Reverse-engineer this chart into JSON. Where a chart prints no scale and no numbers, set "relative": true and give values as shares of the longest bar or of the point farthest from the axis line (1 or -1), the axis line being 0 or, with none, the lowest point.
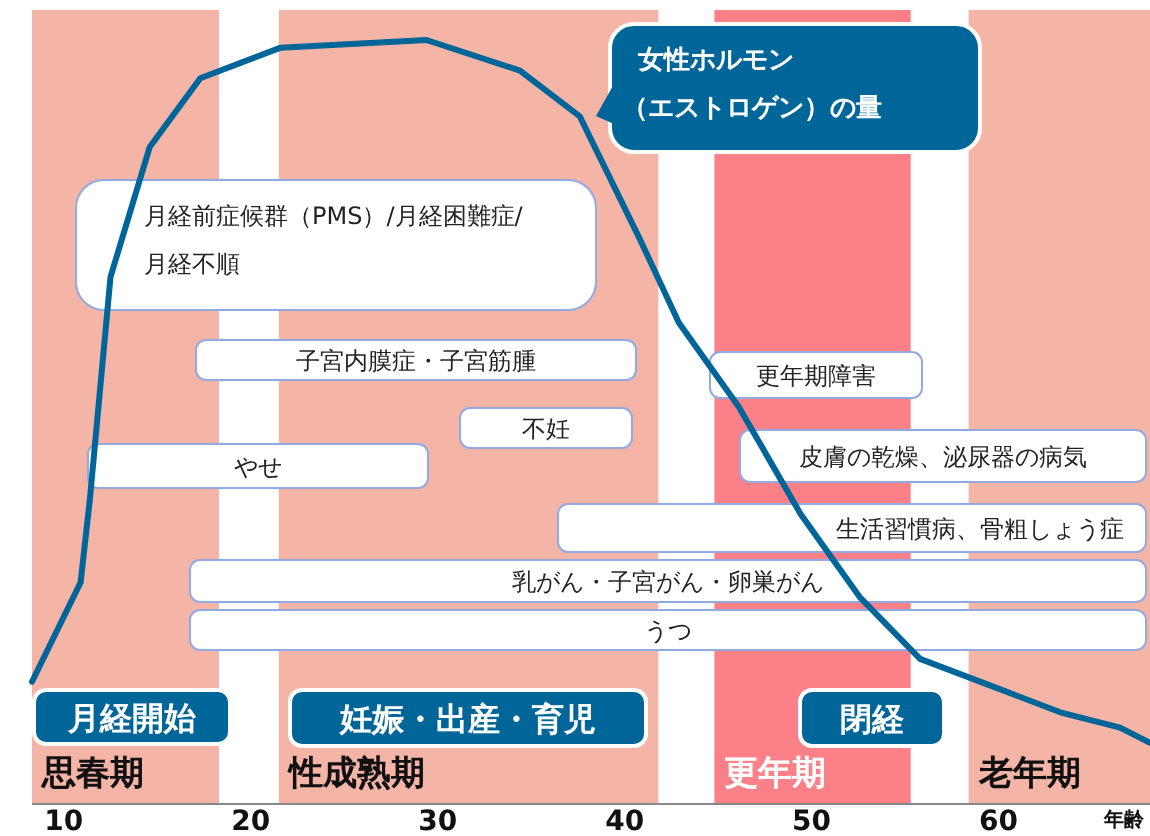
{
  "chart_data": {
    "type": "line",
    "relative": true,
    "xlabel": "年齢",
    "x": [
      8.3,
      10.9,
      11.4,
      12.5,
      14.6,
      17.3,
      21.6,
      29.4,
      34.4,
      37.6,
      40.8,
      42.9,
      46.1,
      49.4,
      52.6,
      55.8,
      60.1,
      63.3,
      66.5,
      68.1
    ],
    "xlim": [
      8.3,
      68.1
    ],
    "xticks": [
      10,
      20,
      30,
      40,
      50,
      60
    ],
    "series": [
      {
        "color": "#006699",
        "values": [
          0.16,
          0.29,
          0.4,
          0.69,
          0.86,
          0.95,
          0.99,
          1,
          0.96,
          0.9,
          0.74,
          0.63,
          0.52,
          0.38,
          0.27,
          0.19,
          0.15,
          0.12,
          0.1,
          0.08
        ]
      }
    ],
    "bands": [
      {
        "axis": "x",
        "from": 8.3,
        "to": 18.3,
        "label": "思春期",
        "color": "#f4b4a6"
      },
      {
        "axis": "x",
        "from": 21.5,
        "to": 41.8,
        "label": "性成熟期",
        "color": "#f4b4a6"
      },
      {
        "axis": "x",
        "from": 44.8,
        "to": 55.3,
        "label": "更年期",
        "color": "#fb8088"
      },
      {
        "axis": "x",
        "from": 58.4,
        "to": 68.1,
        "label": "老年期",
        "color": "#f4b4a6"
      }
    ],
    "annotations": [
      "女性ホルモン",
      "（エストロゲン）の量",
      "月経前症候群（PMS）/月経困難症/",
      "月経不順",
      "子宮内膜症・子宮筋腫",
      "不妊",
      "やせ",
      "更年期障害",
      "皮膚の乾燥、泌尿器の病気",
      "生活習慣病、骨粗しょう症",
      "乳がん・子宮がん・卵巣がん",
      "うつ",
      "月経開始",
      "妊娠・出産・育児",
      "閉経"
    ]
  }
}
